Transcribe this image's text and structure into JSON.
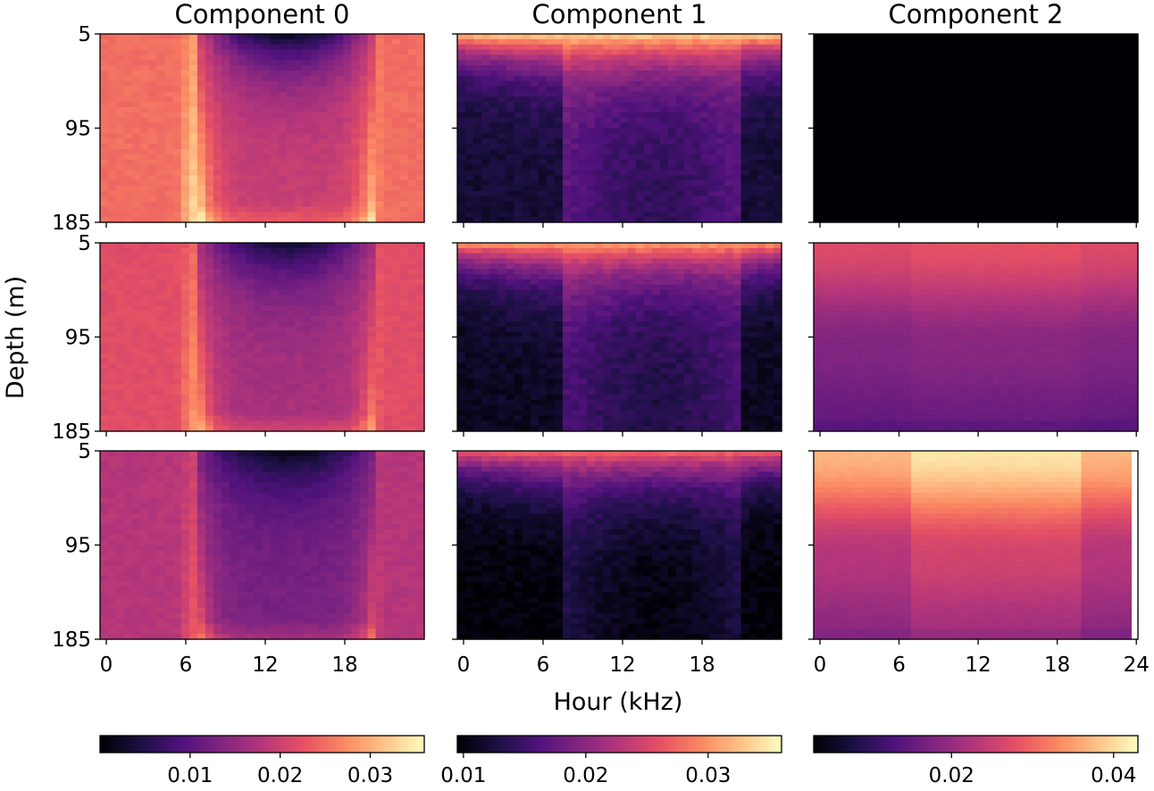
{
  "chart_data": {
    "type": "heatmap",
    "colormap": "magma",
    "column_titles": [
      "Component 0",
      "Component 1",
      "Component 2"
    ],
    "xlabel": "Hour (kHz)",
    "ylabel": "Depth (m)",
    "x_ticks": [
      "0",
      "6",
      "12",
      "18",
      "24"
    ],
    "y_ticks": [
      "5",
      "95",
      "185"
    ],
    "xlim": [
      0,
      24
    ],
    "ylim": [
      185,
      5
    ],
    "grid": false,
    "colorbars": [
      {
        "column": 0,
        "range": [
          0.0,
          0.036
        ],
        "ticks": [
          "0.01",
          "0.02",
          "0.03"
        ]
      },
      {
        "column": 1,
        "range": [
          0.0095,
          0.036
        ],
        "ticks": [
          "0.01",
          "0.02",
          "0.03"
        ]
      },
      {
        "column": 2,
        "range": [
          0.003,
          0.043
        ],
        "ticks": [
          "0.02",
          "0.04"
        ]
      }
    ],
    "panels": [
      {
        "row": 0,
        "column": 0,
        "pattern": "day-night",
        "night_level": 0.025,
        "day_surface": 0.002,
        "day_deep": 0.02,
        "edge_peak": 0.033
      },
      {
        "row": 1,
        "column": 0,
        "pattern": "day-night",
        "night_level": 0.022,
        "day_surface": 0.003,
        "day_deep": 0.017,
        "edge_peak": 0.028
      },
      {
        "row": 2,
        "column": 0,
        "pattern": "day-night",
        "night_level": 0.018,
        "day_surface": 0.001,
        "day_deep": 0.013,
        "edge_peak": 0.023
      },
      {
        "row": 0,
        "column": 1,
        "pattern": "surface-layer",
        "surface_level": 0.034,
        "deep_level": 0.012,
        "day_deep": 0.017
      },
      {
        "row": 1,
        "column": 1,
        "pattern": "surface-layer",
        "surface_level": 0.031,
        "deep_level": 0.011,
        "day_deep": 0.016
      },
      {
        "row": 2,
        "column": 1,
        "pattern": "surface-layer",
        "surface_level": 0.028,
        "deep_level": 0.0098,
        "day_deep": 0.013
      },
      {
        "row": 0,
        "column": 2,
        "pattern": "uniform",
        "level": 0.003
      },
      {
        "row": 1,
        "column": 2,
        "pattern": "gradient",
        "surface_level": 0.027,
        "deep_level": 0.018,
        "bottom_level": 0.015,
        "day_boost": 0.001
      },
      {
        "row": 2,
        "column": 2,
        "pattern": "gradient",
        "surface_level": 0.037,
        "deep_level": 0.023,
        "bottom_level": 0.019,
        "day_boost": 0.004
      }
    ]
  }
}
